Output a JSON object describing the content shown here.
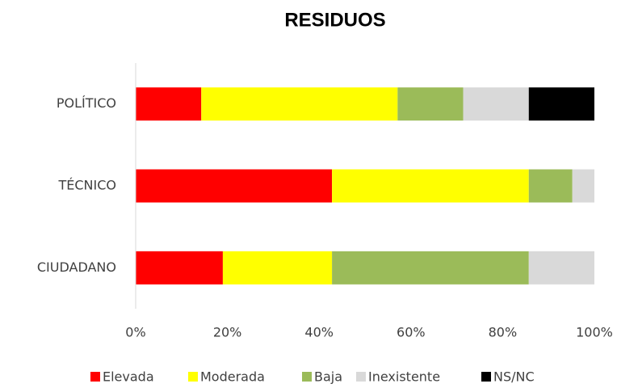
{
  "chart_data": {
    "type": "stacked_bar_horizontal",
    "title": "RESIDUOS",
    "categories": [
      "POLÍTICO",
      "TÉCNICO",
      "CIUDADANO"
    ],
    "series": [
      {
        "name": "Elevada",
        "color": "#ff0000",
        "values": [
          14.3,
          42.8,
          19.0
        ]
      },
      {
        "name": "Moderada",
        "color": "#ffff00",
        "values": [
          42.8,
          42.9,
          23.8
        ]
      },
      {
        "name": "Baja",
        "color": "#9bbb59",
        "values": [
          14.3,
          9.5,
          42.9
        ]
      },
      {
        "name": "Inexistente",
        "color": "#d9d9d9",
        "values": [
          14.3,
          4.8,
          14.3
        ]
      },
      {
        "name": "NS/NC",
        "color": "#000000",
        "values": [
          14.3,
          0,
          0
        ]
      }
    ],
    "xlim": [
      0,
      100
    ],
    "xticks": [
      {
        "value": 0,
        "label": "0%"
      },
      {
        "value": 20,
        "label": "20%"
      },
      {
        "value": 40,
        "label": "40%"
      },
      {
        "value": 60,
        "label": "60%"
      },
      {
        "value": 80,
        "label": "80%"
      },
      {
        "value": 100,
        "label": "100%"
      }
    ],
    "legend": "bottom"
  }
}
